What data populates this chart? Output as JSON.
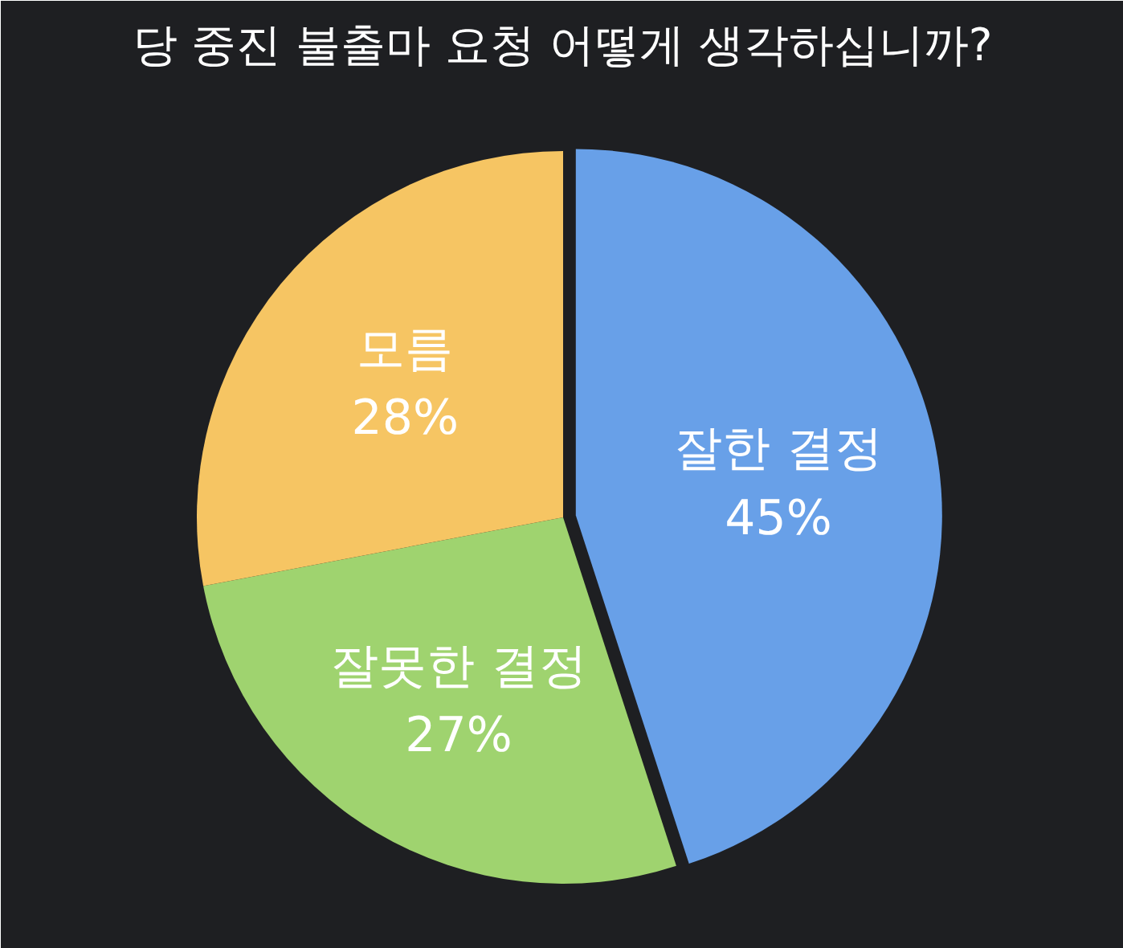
{
  "chart_data": {
    "type": "pie",
    "title": "당 중진 불출마 요청 어떻게 생각하십니까?",
    "categories": [
      "잘한 결정",
      "잘못한 결정",
      "모름"
    ],
    "values": [
      45,
      27,
      28
    ],
    "value_labels": [
      "45%",
      "27%",
      "28%"
    ],
    "colors": [
      "#68a0e8",
      "#9fd36f",
      "#f6c563"
    ]
  }
}
